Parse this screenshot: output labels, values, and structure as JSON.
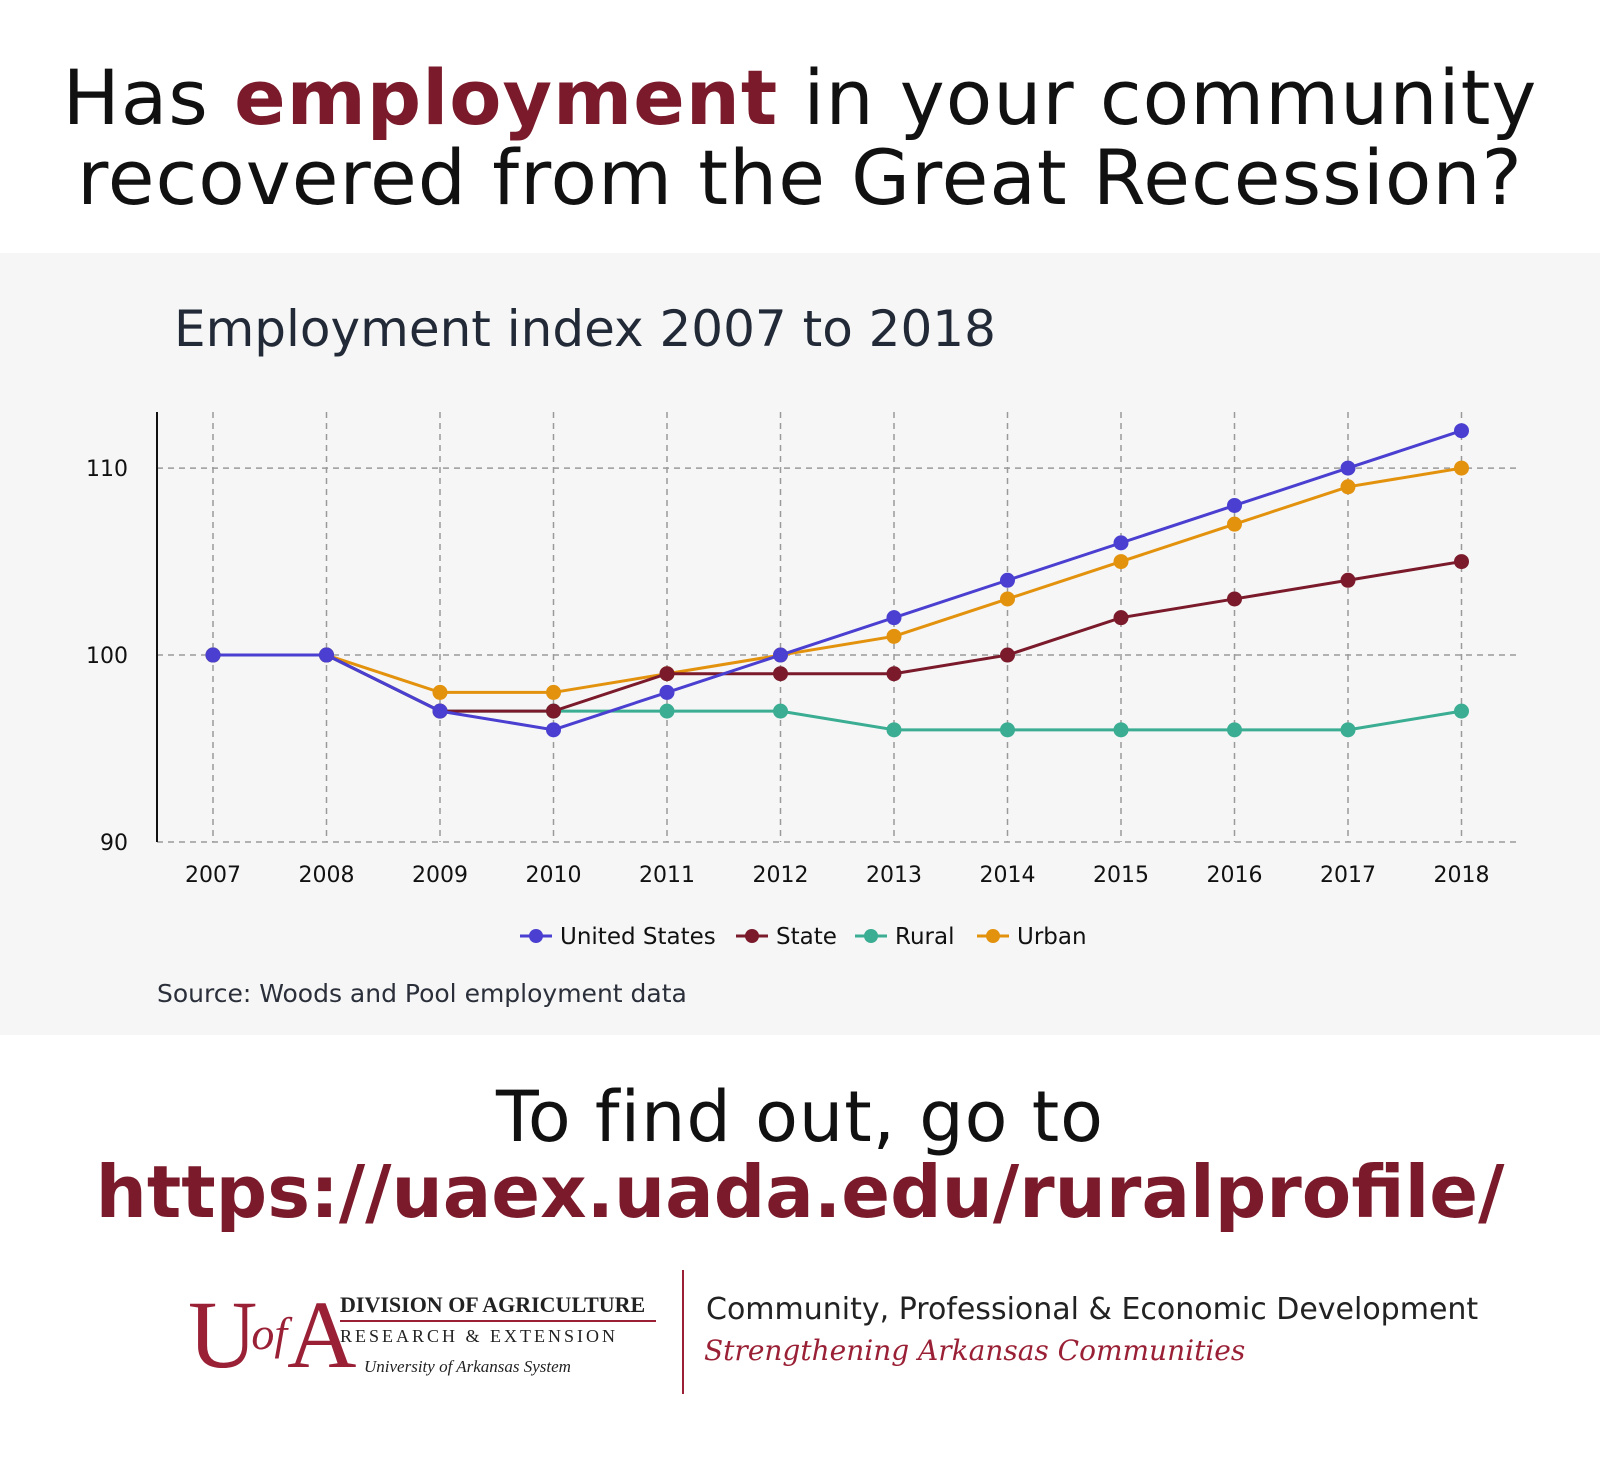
{
  "headline": {
    "part1": "Has ",
    "emphasis": "employment",
    "part2": " in your community",
    "line2": "recovered from the Great Recession?"
  },
  "colors": {
    "brand": "#7a1a2b",
    "logo_red": "#9a2036",
    "panel_bg": "#f6f6f6"
  },
  "chart_data": {
    "type": "line",
    "title": "Employment index 2007 to 2018",
    "xlabel": "",
    "ylabel": "",
    "x": [
      "2007",
      "2008",
      "2009",
      "2010",
      "2011",
      "2012",
      "2013",
      "2014",
      "2015",
      "2016",
      "2017",
      "2018"
    ],
    "ylim": [
      90,
      113
    ],
    "yticks": [
      90,
      100,
      110
    ],
    "grid": true,
    "legend": "bottom",
    "series": [
      {
        "name": "United States",
        "color": "#4a3fd0",
        "values": [
          100,
          100,
          97,
          96,
          98,
          100,
          102,
          104,
          106,
          108,
          110,
          112
        ]
      },
      {
        "name": "State",
        "color": "#7a1a2b",
        "values": [
          100,
          100,
          97,
          97,
          99,
          99,
          99,
          100,
          102,
          103,
          104,
          105
        ]
      },
      {
        "name": "Rural",
        "color": "#3aad93",
        "values": [
          100,
          100,
          97,
          97,
          97,
          97,
          96,
          96,
          96,
          96,
          96,
          97
        ]
      },
      {
        "name": "Urban",
        "color": "#e3920e",
        "values": [
          100,
          100,
          98,
          98,
          99,
          100,
          101,
          103,
          105,
          107,
          109,
          110
        ]
      }
    ],
    "source": "Source: Woods and Pool employment data"
  },
  "cta": {
    "line1": "To find out, go to",
    "url": "https://uaex.uada.edu/ruralprofile/"
  },
  "logo": {
    "mark_u": "U",
    "mark_of": "of",
    "mark_a": "A",
    "division": "DIVISION OF AGRICULTURE",
    "research": "RESEARCH & EXTENSION",
    "system": "University of Arkansas System",
    "department": "Community, Professional & Economic Development",
    "tagline": "Strengthening Arkansas Communities"
  }
}
